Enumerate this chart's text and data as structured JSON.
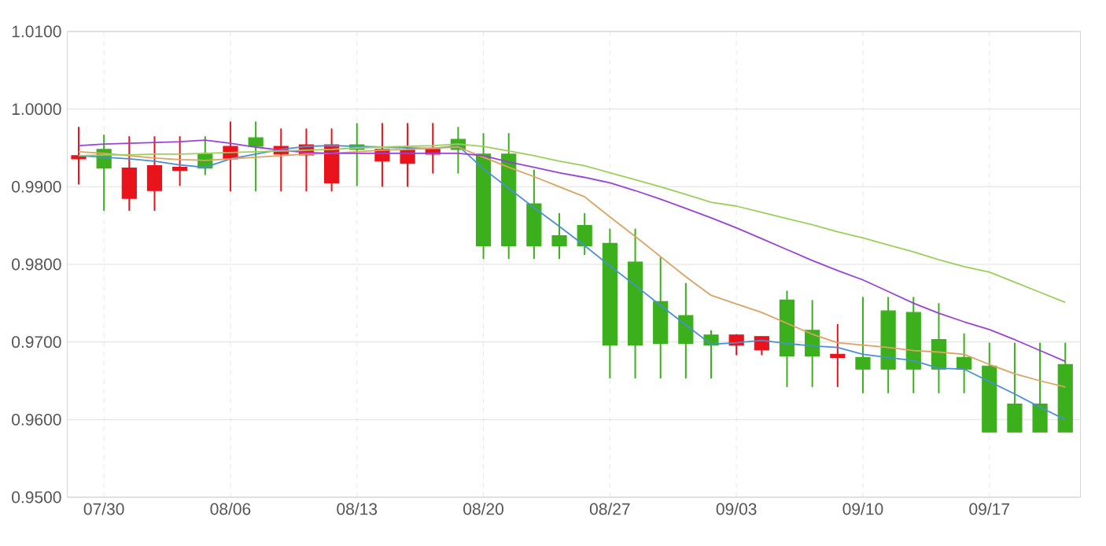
{
  "chart_data": {
    "type": "candlestick",
    "categories": [
      null,
      "07/30",
      null,
      null,
      null,
      null,
      "08/06",
      null,
      null,
      null,
      null,
      "08/13",
      null,
      null,
      null,
      null,
      "08/20",
      null,
      null,
      null,
      null,
      "08/27",
      null,
      null,
      null,
      null,
      "09/03",
      null,
      null,
      null,
      null,
      "09/10",
      null,
      null,
      null,
      null,
      "09/17",
      null,
      null,
      null
    ],
    "ohlc": [
      [
        0.9936,
        0.9977,
        0.9903,
        0.994
      ],
      [
        0.9948,
        0.9967,
        0.9869,
        0.9924
      ],
      [
        0.9885,
        0.9965,
        0.9869,
        0.9924
      ],
      [
        0.9895,
        0.9965,
        0.9869,
        0.9927
      ],
      [
        0.9921,
        0.9965,
        0.9901,
        0.9925
      ],
      [
        0.9942,
        0.9965,
        0.9915,
        0.9924
      ],
      [
        0.9936,
        0.9984,
        0.9894,
        0.9952
      ],
      [
        0.9963,
        0.9984,
        0.9894,
        0.9952
      ],
      [
        0.9942,
        0.9975,
        0.9894,
        0.9952
      ],
      [
        0.9941,
        0.9975,
        0.9894,
        0.9954
      ],
      [
        0.9905,
        0.9975,
        0.9894,
        0.9954
      ],
      [
        0.9954,
        0.9982,
        0.9901,
        0.9948
      ],
      [
        0.9933,
        0.9982,
        0.99,
        0.9948
      ],
      [
        0.993,
        0.9982,
        0.99,
        0.9947
      ],
      [
        0.9942,
        0.9982,
        0.9917,
        0.9948
      ],
      [
        0.9961,
        0.9977,
        0.9917,
        0.9948
      ],
      [
        0.9942,
        0.9969,
        0.9807,
        0.9824
      ],
      [
        0.9942,
        0.9969,
        0.9807,
        0.9824
      ],
      [
        0.9878,
        0.9922,
        0.9807,
        0.9824
      ],
      [
        0.9837,
        0.9866,
        0.9807,
        0.9824
      ],
      [
        0.985,
        0.9866,
        0.9812,
        0.9824
      ],
      [
        0.9827,
        0.9846,
        0.9653,
        0.9696
      ],
      [
        0.9803,
        0.9846,
        0.9653,
        0.9696
      ],
      [
        0.9752,
        0.9809,
        0.9653,
        0.9698
      ],
      [
        0.9734,
        0.9776,
        0.9653,
        0.9698
      ],
      [
        0.9709,
        0.9715,
        0.9653,
        0.9696
      ],
      [
        0.9696,
        0.971,
        0.9683,
        0.9709
      ],
      [
        0.969,
        0.9707,
        0.9683,
        0.9707
      ],
      [
        0.9754,
        0.9766,
        0.9642,
        0.9682
      ],
      [
        0.9715,
        0.9754,
        0.9642,
        0.9682
      ],
      [
        0.968,
        0.9723,
        0.9642,
        0.9684
      ],
      [
        0.968,
        0.9758,
        0.9634,
        0.9665
      ],
      [
        0.974,
        0.9758,
        0.9634,
        0.9665
      ],
      [
        0.9738,
        0.9758,
        0.9634,
        0.9665
      ],
      [
        0.9703,
        0.975,
        0.9634,
        0.9665
      ],
      [
        0.968,
        0.9711,
        0.9634,
        0.9665
      ],
      [
        0.9669,
        0.9699,
        0.9584,
        0.9584
      ],
      [
        0.962,
        0.9699,
        0.9584,
        0.9584
      ],
      [
        0.962,
        0.9699,
        0.9584,
        0.9584
      ],
      [
        0.9671,
        0.9699,
        0.9584,
        0.9584
      ]
    ],
    "colors": [
      "#e8131b",
      "#3cb01c",
      "#e8131b",
      "#e8131b",
      "#e8131b",
      "#3cb01c",
      "#e8131b",
      "#3cb01c",
      "#e8131b",
      "#e8131b",
      "#e8131b",
      "#3cb01c",
      "#e8131b",
      "#e8131b",
      "#e8131b",
      "#3cb01c",
      "#3cb01c",
      "#3cb01c",
      "#3cb01c",
      "#3cb01c",
      "#3cb01c",
      "#3cb01c",
      "#3cb01c",
      "#3cb01c",
      "#3cb01c",
      "#3cb01c",
      "#e8131b",
      "#e8131b",
      "#3cb01c",
      "#3cb01c",
      "#e8131b",
      "#3cb01c",
      "#3cb01c",
      "#3cb01c",
      "#3cb01c",
      "#3cb01c",
      "#3cb01c",
      "#3cb01c",
      "#3cb01c",
      "#3cb01c"
    ],
    "series": [
      {
        "type": "line",
        "color": "#4a8fd6",
        "values": [
          0.994,
          0.9938,
          0.9936,
          0.9933,
          0.9928,
          0.9925,
          0.9936,
          0.9942,
          0.9948,
          0.9952,
          0.9953,
          0.9952,
          0.9951,
          0.995,
          0.9949,
          0.9953,
          0.9923,
          0.9898,
          0.9873,
          0.9849,
          0.9824,
          0.9798,
          0.9773,
          0.9747,
          0.9722,
          0.9697,
          0.9699,
          0.9702,
          0.9698,
          0.9695,
          0.9693,
          0.9684,
          0.968,
          0.9676,
          0.9666,
          0.9665,
          0.9649,
          0.9633,
          0.9616,
          0.96
        ]
      },
      {
        "type": "line",
        "color": "#dca262",
        "values": [
          0.9945,
          0.9943,
          0.994,
          0.9937,
          0.9935,
          0.9934,
          0.9936,
          0.9938,
          0.994,
          0.9942,
          0.9943,
          0.9945,
          0.9947,
          0.9948,
          0.995,
          0.9951,
          0.9938,
          0.9925,
          0.9913,
          0.99,
          0.9887,
          0.9861,
          0.9836,
          0.981,
          0.9784,
          0.976,
          0.9749,
          0.9738,
          0.9724,
          0.971,
          0.9699,
          0.9696,
          0.9693,
          0.9689,
          0.9687,
          0.9684,
          0.9671,
          0.9659,
          0.965,
          0.9642
        ]
      },
      {
        "type": "line",
        "color": "#9a42d6",
        "values": [
          0.9953,
          0.9955,
          0.9956,
          0.9957,
          0.9958,
          0.996,
          0.9956,
          0.9951,
          0.9947,
          0.9944,
          0.9943,
          0.9943,
          0.9943,
          0.9943,
          0.9943,
          0.9943,
          0.994,
          0.9932,
          0.9925,
          0.9918,
          0.9912,
          0.9905,
          0.9895,
          0.9884,
          0.9872,
          0.986,
          0.9847,
          0.9833,
          0.9819,
          0.9805,
          0.9792,
          0.978,
          0.9765,
          0.975,
          0.9737,
          0.9726,
          0.9716,
          0.9703,
          0.9689,
          0.9675
        ]
      },
      {
        "type": "line",
        "color": "#9ccf5a",
        "values": [
          0.994,
          0.9941,
          0.9941,
          0.9942,
          0.9942,
          0.9943,
          0.9944,
          0.9945,
          0.9946,
          0.9947,
          0.9948,
          0.995,
          0.9951,
          0.9952,
          0.9953,
          0.9955,
          0.9952,
          0.9946,
          0.994,
          0.9933,
          0.9927,
          0.9918,
          0.9909,
          0.99,
          0.989,
          0.988,
          0.9875,
          0.9867,
          0.9859,
          0.9851,
          0.9842,
          0.9834,
          0.9825,
          0.9816,
          0.9806,
          0.9797,
          0.979,
          0.9777,
          0.9764,
          0.9751
        ]
      }
    ],
    "ylim": [
      0.95,
      1.01
    ],
    "yticks": [
      {
        "value": 0.95,
        "label": "0.9500"
      },
      {
        "value": 0.96,
        "label": "0.9600"
      },
      {
        "value": 0.97,
        "label": "0.9700"
      },
      {
        "value": 0.98,
        "label": "0.9800"
      },
      {
        "value": 0.99,
        "label": "0.9900"
      },
      {
        "value": 1.0,
        "label": "1.0000"
      },
      {
        "value": 1.01,
        "label": "1.0100"
      }
    ],
    "grid": true
  }
}
